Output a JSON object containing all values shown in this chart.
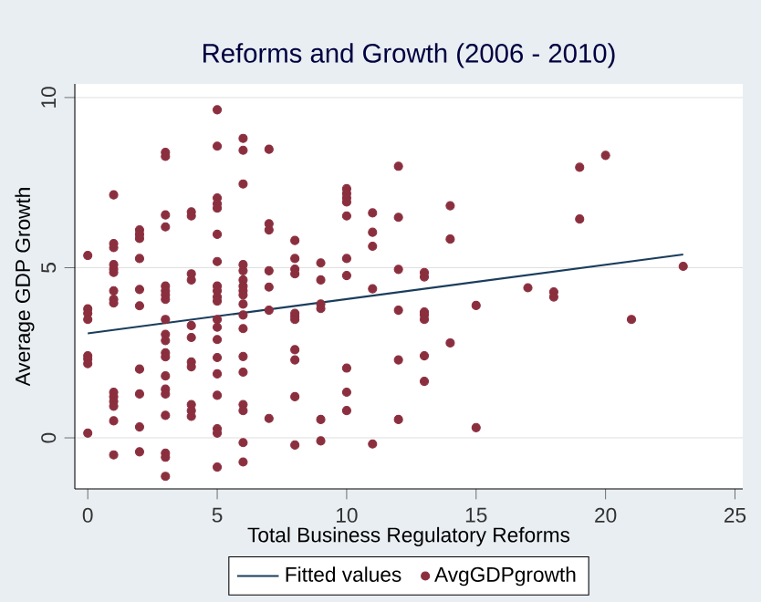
{
  "chart_data": {
    "type": "scatter",
    "title": "Reforms and Growth (2006 - 2010)",
    "xlabel": "Total Business Regulatory Reforms",
    "ylabel": "Average GDP Growth",
    "xlim": [
      -0.5,
      25.3
    ],
    "ylim": [
      -1.5,
      10.4
    ],
    "xticks": [
      0,
      5,
      10,
      15,
      20,
      25
    ],
    "yticks": [
      0,
      5,
      10
    ],
    "grid": "y",
    "legend": "bottom",
    "series": [
      {
        "name": "Fitted values",
        "type": "line",
        "marker": "none",
        "color": "#1a3d5c",
        "x": [
          0,
          23
        ],
        "values": [
          3.07,
          5.39
        ]
      },
      {
        "name": "AvgGDPgrowth",
        "marker": "circle",
        "color": "#8b2f3f",
        "x": [
          0,
          0,
          0,
          0,
          0,
          0,
          0,
          0,
          1,
          1,
          1,
          1,
          1,
          1,
          1,
          1,
          1,
          1,
          1,
          1,
          1,
          1,
          1,
          2,
          2,
          2,
          2,
          2,
          2,
          2,
          2,
          2,
          2,
          3,
          3,
          3,
          3,
          3,
          3,
          3,
          3,
          3,
          3,
          3,
          3,
          3,
          3,
          3,
          3,
          3,
          3,
          3,
          3,
          4,
          4,
          4,
          4,
          4,
          4,
          4,
          4,
          4,
          4,
          4,
          5,
          5,
          5,
          5,
          5,
          5,
          5,
          5,
          5,
          5,
          5,
          5,
          5,
          5,
          5,
          5,
          5,
          5,
          5,
          5,
          6,
          6,
          6,
          6,
          6,
          6,
          6,
          6,
          6,
          6,
          6,
          6,
          6,
          6,
          6,
          6,
          6,
          6,
          7,
          7,
          7,
          7,
          7,
          7,
          7,
          8,
          8,
          8,
          8,
          8,
          8,
          8,
          8,
          8,
          8,
          8,
          9,
          9,
          9,
          9,
          9,
          9,
          10,
          10,
          10,
          10,
          10,
          10,
          10,
          10,
          10,
          10,
          11,
          11,
          11,
          11,
          11,
          12,
          12,
          12,
          12,
          12,
          12,
          13,
          13,
          13,
          13,
          13,
          13,
          13,
          14,
          14,
          14,
          15,
          15,
          17,
          18,
          18,
          19,
          19,
          20,
          21,
          23
        ],
        "values": [
          5.36,
          3.79,
          3.66,
          3.48,
          2.41,
          2.32,
          2.18,
          0.14,
          7.14,
          5.71,
          5.59,
          5.09,
          4.96,
          4.86,
          4.32,
          4.07,
          3.96,
          1.34,
          1.21,
          1.07,
          0.93,
          0.5,
          -0.5,
          6.11,
          5.98,
          5.86,
          5.27,
          4.36,
          3.88,
          2.02,
          1.29,
          0.32,
          -0.41,
          8.39,
          8.27,
          6.55,
          6.2,
          4.46,
          4.32,
          4.2,
          4.07,
          3.48,
          3.04,
          2.86,
          2.5,
          2.38,
          1.82,
          1.43,
          1.29,
          0.66,
          -0.45,
          -0.57,
          -1.13,
          6.64,
          6.52,
          4.82,
          4.64,
          3.3,
          2.95,
          2.23,
          2.09,
          0.98,
          0.8,
          0.63,
          9.64,
          8.57,
          7.05,
          6.88,
          6.75,
          5.98,
          5.18,
          4.46,
          4.32,
          4.14,
          4.02,
          3.48,
          3.25,
          2.89,
          2.36,
          1.88,
          1.25,
          0.27,
          0.14,
          -0.86,
          8.8,
          8.45,
          7.46,
          5.09,
          4.91,
          4.64,
          4.46,
          4.32,
          4.2,
          3.93,
          3.61,
          3.21,
          2.39,
          1.93,
          0.98,
          0.8,
          -0.14,
          -0.71,
          8.48,
          6.29,
          6.11,
          4.91,
          4.43,
          3.75,
          0.57,
          5.8,
          5.27,
          4.96,
          4.82,
          3.66,
          3.57,
          3.48,
          2.59,
          2.29,
          1.21,
          -0.21,
          5.14,
          4.64,
          3.93,
          3.8,
          0.54,
          -0.09,
          7.32,
          7.18,
          7.05,
          6.93,
          6.52,
          5.27,
          4.77,
          2.05,
          1.34,
          0.8,
          6.61,
          6.04,
          5.63,
          4.38,
          -0.18,
          7.98,
          6.48,
          4.95,
          3.75,
          2.29,
          0.54,
          4.86,
          4.73,
          3.7,
          3.61,
          3.48,
          2.41,
          1.66,
          6.82,
          5.84,
          2.79,
          3.89,
          0.3,
          4.41,
          4.29,
          4.14,
          7.95,
          6.43,
          8.3,
          3.48,
          5.04
        ]
      }
    ]
  }
}
